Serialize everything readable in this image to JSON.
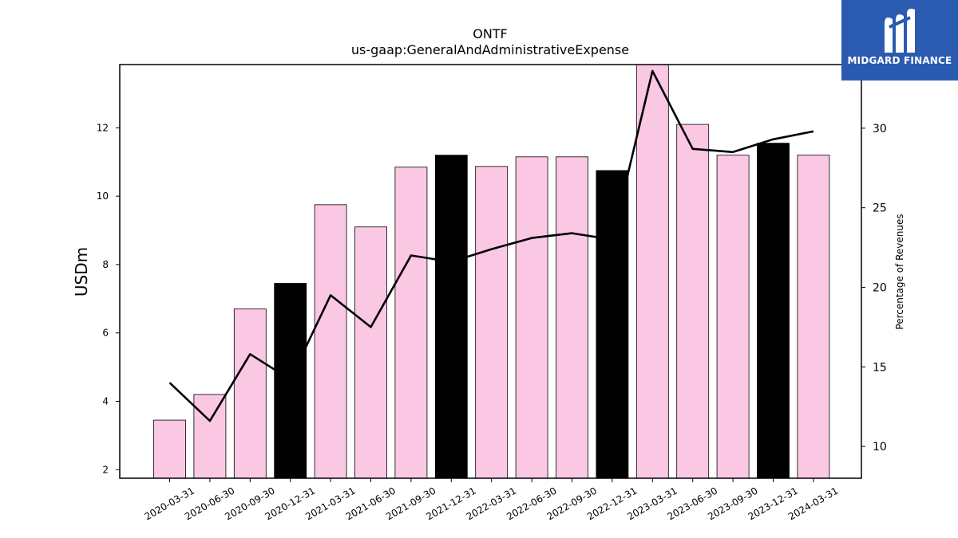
{
  "chart_data": {
    "type": "bar+line",
    "title": "ONTF",
    "subtitle": "us-gaap:GeneralAndAdministrativeExpense",
    "ylabel_left": "USDm",
    "ylabel_right": "Percentage of Revenues",
    "categories": [
      "2020-03-31",
      "2020-06-30",
      "2020-09-30",
      "2020-12-31",
      "2021-03-31",
      "2021-06-30",
      "2021-09-30",
      "2021-12-31",
      "2022-03-31",
      "2022-06-30",
      "2022-09-30",
      "2022-12-31",
      "2023-03-31",
      "2023-06-30",
      "2023-09-30",
      "2023-12-31",
      "2024-03-31"
    ],
    "bar_values": [
      3.45,
      4.2,
      6.7,
      7.45,
      9.75,
      9.1,
      10.85,
      11.2,
      10.87,
      11.15,
      11.15,
      10.75,
      13.9,
      12.1,
      11.2,
      11.55,
      11.2
    ],
    "bar_highlight": [
      false,
      false,
      false,
      true,
      false,
      false,
      false,
      true,
      false,
      false,
      false,
      true,
      false,
      false,
      false,
      true,
      false
    ],
    "line_values": [
      14.0,
      11.6,
      15.8,
      14.2,
      19.5,
      17.5,
      22.0,
      21.6,
      22.4,
      23.1,
      23.4,
      23.0,
      33.6,
      28.7,
      28.5,
      29.3,
      29.8
    ],
    "ylim_left": [
      1.75,
      13.85
    ],
    "ylim_right": [
      8.0,
      34.0
    ],
    "yticks_left": [
      2,
      4,
      6,
      8,
      10,
      12
    ],
    "yticks_right": [
      10,
      15,
      20,
      25,
      30
    ],
    "grid": false,
    "colors": {
      "bar": "#fbc8e4",
      "bar_highlight": "#000000",
      "line": "#000000",
      "bar_edge": "#000000"
    }
  },
  "logo": {
    "text": "MIDGARD FINANCE",
    "background": "#2b5bb0"
  }
}
